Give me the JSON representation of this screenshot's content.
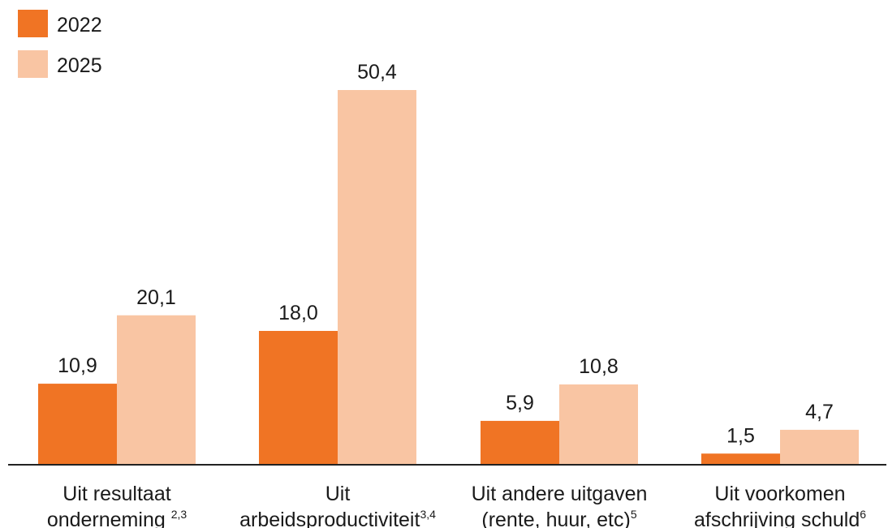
{
  "chart_data": {
    "type": "bar",
    "categories": [
      {
        "lines": [
          "Uit resultaat",
          "onderneming "
        ],
        "sup": "2,3"
      },
      {
        "lines": [
          "Uit",
          "arbeidsproductiviteit"
        ],
        "sup": "3,4"
      },
      {
        "lines": [
          "Uit andere uitgaven",
          "(rente, huur, etc)"
        ],
        "sup": "5"
      },
      {
        "lines": [
          "Uit voorkomen",
          "afschrijving schuld"
        ],
        "sup": "6"
      }
    ],
    "series": [
      {
        "name": "2022",
        "color": "#f07424",
        "values": [
          10.9,
          18.0,
          5.9,
          1.5
        ],
        "labels": [
          "10,9",
          "18,0",
          "5,9",
          "1,5"
        ]
      },
      {
        "name": "2025",
        "color": "#f9c5a3",
        "values": [
          20.1,
          50.4,
          10.8,
          4.7
        ],
        "labels": [
          "20,1",
          "50,4",
          "10,8",
          "4,7"
        ]
      }
    ],
    "ylim": [
      0,
      50.4
    ],
    "legend": "top-left",
    "grid": false
  }
}
